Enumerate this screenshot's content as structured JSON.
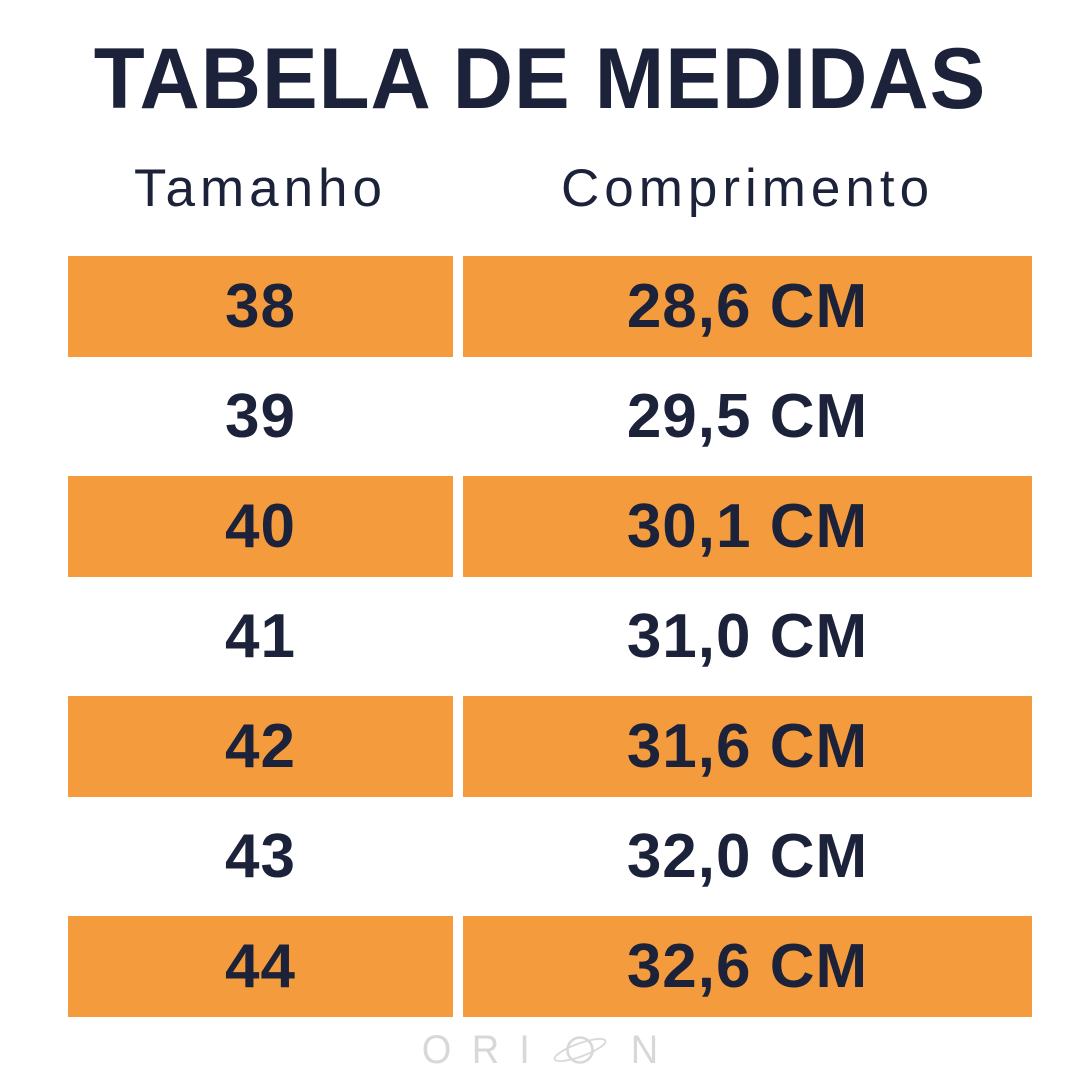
{
  "title": "TABELA DE MEDIDAS",
  "columns": [
    {
      "label": "Tamanho"
    },
    {
      "label": "Comprimento"
    }
  ],
  "rows": [
    {
      "size": "38",
      "length": "28,6 CM",
      "highlight": true
    },
    {
      "size": "39",
      "length": "29,5 CM",
      "highlight": false
    },
    {
      "size": "40",
      "length": "30,1 CM",
      "highlight": true
    },
    {
      "size": "41",
      "length": "31,0 CM",
      "highlight": false
    },
    {
      "size": "42",
      "length": "31,6 CM",
      "highlight": true
    },
    {
      "size": "43",
      "length": "32,0 CM",
      "highlight": false
    },
    {
      "size": "44",
      "length": "32,6 CM",
      "highlight": true
    }
  ],
  "logo": {
    "brand": "ORION",
    "left_letters": [
      "O",
      "R",
      "I"
    ],
    "right_letters": [
      "N"
    ],
    "planet_icon": "ringed-planet-o"
  },
  "colors": {
    "accent_orange": "#F49C3D",
    "text_navy": "#1C2239",
    "logo_gray": "#D8D8D8",
    "background": "#FFFFFF"
  },
  "chart_data": {
    "type": "table",
    "title": "TABELA DE MEDIDAS",
    "columns": [
      "Tamanho",
      "Comprimento"
    ],
    "rows": [
      [
        "38",
        "28,6 CM"
      ],
      [
        "39",
        "29,5 CM"
      ],
      [
        "40",
        "30,1 CM"
      ],
      [
        "41",
        "31,0 CM"
      ],
      [
        "42",
        "31,6 CM"
      ],
      [
        "43",
        "32,0 CM"
      ],
      [
        "44",
        "32,6 CM"
      ]
    ],
    "lengths_cm": [
      28.6,
      29.5,
      30.1,
      31.0,
      31.6,
      32.0,
      32.6
    ],
    "highlighted_row_indexes": [
      0,
      2,
      4,
      6
    ],
    "layout": "two-column size chart, alternating orange highlight rows"
  }
}
